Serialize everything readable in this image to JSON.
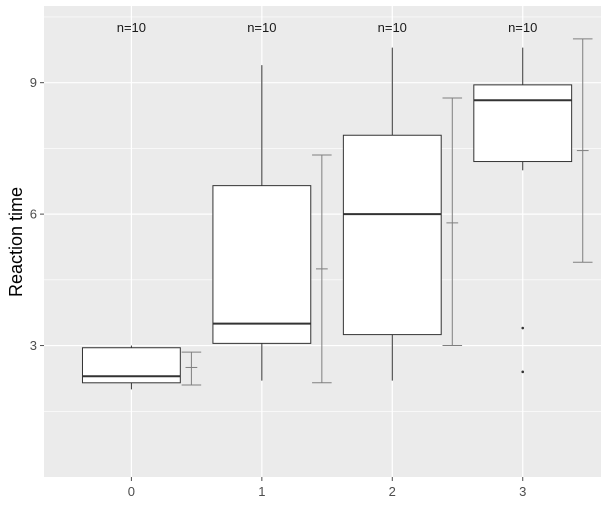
{
  "chart_data": {
    "type": "boxplot",
    "ylabel": "Reaction time",
    "xlabel": "",
    "title": "",
    "xlim": [
      -0.67,
      3.6
    ],
    "ylim": [
      0.0,
      10.75
    ],
    "grid": true,
    "legend": "none",
    "categories": [
      "0",
      "1",
      "2",
      "3"
    ],
    "y_ticks": [
      3,
      6,
      9
    ],
    "y_minor_ticks": [
      1.5,
      4.5,
      7.5,
      10.5
    ],
    "box_stats": [
      {
        "category": "0",
        "min": 2.0,
        "q1": 2.15,
        "median": 2.3,
        "q3": 2.95,
        "max": 3.0,
        "outliers": []
      },
      {
        "category": "1",
        "min": 2.2,
        "q1": 3.05,
        "median": 3.5,
        "q3": 6.65,
        "max": 9.4,
        "outliers": []
      },
      {
        "category": "2",
        "min": 2.2,
        "q1": 3.25,
        "median": 6.0,
        "q3": 7.8,
        "max": 9.8,
        "outliers": []
      },
      {
        "category": "3",
        "min": 7.0,
        "q1": 7.2,
        "median": 8.6,
        "q3": 8.95,
        "max": 9.8,
        "outliers": [
          3.4,
          2.4
        ]
      }
    ],
    "mean_sd_bars": [
      {
        "category": "0",
        "mean": 2.5,
        "low": 2.1,
        "high": 2.85
      },
      {
        "category": "1",
        "mean": 4.75,
        "low": 2.15,
        "high": 7.35
      },
      {
        "category": "2",
        "mean": 5.8,
        "low": 3.0,
        "high": 8.65
      },
      {
        "category": "3",
        "mean": 7.45,
        "low": 4.9,
        "high": 10.0
      }
    ],
    "count_labels": [
      "n=10",
      "n=10",
      "n=10",
      "n=10"
    ],
    "colors": {
      "panel": "#ebebeb",
      "grid_major": "#ffffff",
      "box_fill": "#ffffff",
      "box_line": "#333333",
      "errorbar": "#7f7f7f",
      "tick": "#4d4d4d"
    }
  }
}
